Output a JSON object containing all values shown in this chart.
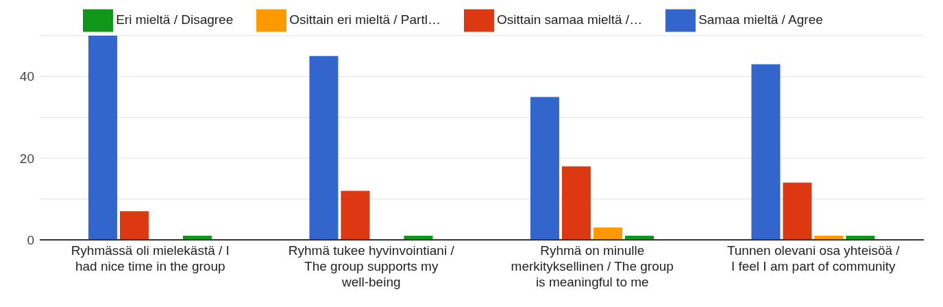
{
  "chart_data": {
    "type": "bar",
    "categories": [
      "Ryhmässä oli mielekästä / I had nice time in the group",
      "Ryhmä tukee hyvinvointiani / The group supports my well-being",
      "Ryhmä on minulle merkityksellinen / The group is meaningful to me",
      "Tunnen olevani osa yhteisöä / I feel I am part of community"
    ],
    "series": [
      {
        "name": "Samaa mieltä / Agree",
        "color": "#3366cc",
        "values": [
          50,
          45,
          35,
          43
        ]
      },
      {
        "name": "Osittain samaa mieltä /…",
        "color": "#dc3912",
        "values": [
          7,
          12,
          18,
          14
        ]
      },
      {
        "name": "Osittain eri mieltä / Partl…",
        "color": "#ff9900",
        "values": [
          0,
          0,
          3,
          1
        ]
      },
      {
        "name": "Eri mieltä / Disagree",
        "color": "#109618",
        "values": [
          1,
          1,
          1,
          1
        ]
      }
    ],
    "ylim": [
      0,
      50
    ],
    "yticks": [
      0,
      {
        "value": 10,
        "label": null
      },
      20,
      {
        "value": 30,
        "label": null
      },
      40,
      {
        "value": 50,
        "label": null
      }
    ],
    "grid": "y",
    "legend": "top"
  }
}
